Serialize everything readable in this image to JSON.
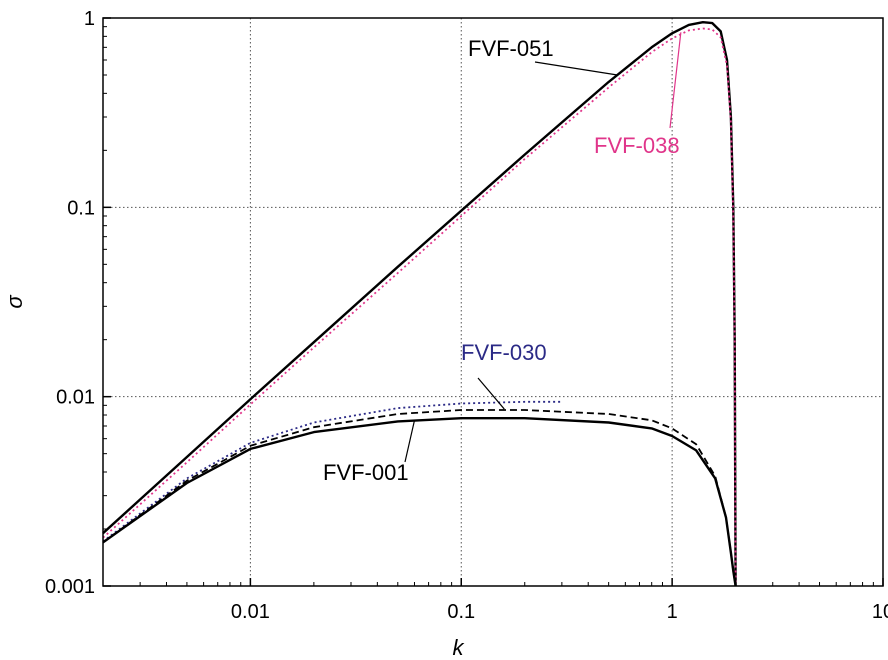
{
  "chart_data": {
    "type": "line",
    "title": "",
    "xlabel": "k",
    "ylabel": "σ",
    "xscale": "log",
    "yscale": "log",
    "xlim": [
      0.002,
      10
    ],
    "ylim": [
      0.001,
      1
    ],
    "grid": true,
    "x_ticks": [
      0.01,
      0.1,
      1,
      10
    ],
    "x_tick_labels": [
      "0.01",
      "0.1",
      "1",
      "10"
    ],
    "y_ticks": [
      0.001,
      0.01,
      0.1,
      1
    ],
    "y_tick_labels": [
      "0.001",
      "0.01",
      "0.1",
      "1"
    ],
    "colors": {
      "black": "#000000",
      "pink": "#e0358a",
      "navy": "#2b2a86"
    },
    "series": [
      {
        "name": "FVF-051",
        "color": "#000000",
        "dash": "solid",
        "x": [
          0.002,
          0.005,
          0.01,
          0.02,
          0.05,
          0.1,
          0.2,
          0.5,
          0.8,
          1.0,
          1.2,
          1.4,
          1.55,
          1.7,
          1.82,
          1.9,
          1.95,
          1.98,
          2.0
        ],
        "y": [
          0.0019,
          0.0048,
          0.0097,
          0.0194,
          0.0485,
          0.096,
          0.19,
          0.46,
          0.7,
          0.83,
          0.92,
          0.95,
          0.94,
          0.85,
          0.6,
          0.3,
          0.1,
          0.02,
          0.001
        ]
      },
      {
        "name": "FVF-038",
        "color": "#e0358a",
        "dash": "dotted",
        "x": [
          0.002,
          0.005,
          0.01,
          0.02,
          0.05,
          0.1,
          0.2,
          0.5,
          0.8,
          1.0,
          1.2,
          1.4,
          1.55,
          1.7,
          1.82,
          1.9,
          1.95,
          1.98,
          2.0
        ],
        "y": [
          0.0018,
          0.0045,
          0.0091,
          0.0182,
          0.045,
          0.09,
          0.18,
          0.43,
          0.66,
          0.78,
          0.86,
          0.88,
          0.87,
          0.79,
          0.56,
          0.28,
          0.09,
          0.02,
          0.001
        ]
      },
      {
        "name": "FVF-030",
        "color": "#2b2a86",
        "dash": "dotted",
        "x": [
          0.002,
          0.005,
          0.01,
          0.02,
          0.05,
          0.1,
          0.2,
          0.3
        ],
        "y": [
          0.00172,
          0.0037,
          0.0057,
          0.0073,
          0.0087,
          0.0092,
          0.0094,
          0.0094
        ]
      },
      {
        "name": "",
        "color": "#000000",
        "dash": "dashed",
        "x": [
          0.002,
          0.005,
          0.01,
          0.02,
          0.05,
          0.1,
          0.2,
          0.5,
          0.8,
          1.0,
          1.3,
          1.6,
          1.8,
          1.9,
          1.95,
          2.0
        ],
        "y": [
          0.0017,
          0.0036,
          0.0055,
          0.0069,
          0.0081,
          0.0085,
          0.0085,
          0.0081,
          0.0075,
          0.0068,
          0.0056,
          0.0038,
          0.0023,
          0.0015,
          0.0012,
          0.001
        ]
      },
      {
        "name": "FVF-001",
        "color": "#000000",
        "dash": "solid",
        "x": [
          0.002,
          0.005,
          0.01,
          0.02,
          0.05,
          0.1,
          0.2,
          0.5,
          0.8,
          1.0,
          1.3,
          1.6,
          1.8,
          1.9,
          1.95,
          2.0
        ],
        "y": [
          0.0017,
          0.0035,
          0.0053,
          0.0065,
          0.0074,
          0.0077,
          0.0077,
          0.0073,
          0.0068,
          0.0062,
          0.0052,
          0.0037,
          0.0023,
          0.0015,
          0.0012,
          0.001
        ]
      }
    ],
    "annotations": [
      {
        "text": "FVF-051",
        "color": "#000000"
      },
      {
        "text": "FVF-038",
        "color": "#e0358a"
      },
      {
        "text": "FVF-030",
        "color": "#2b2a86"
      },
      {
        "text": "FVF-001",
        "color": "#000000"
      }
    ]
  }
}
